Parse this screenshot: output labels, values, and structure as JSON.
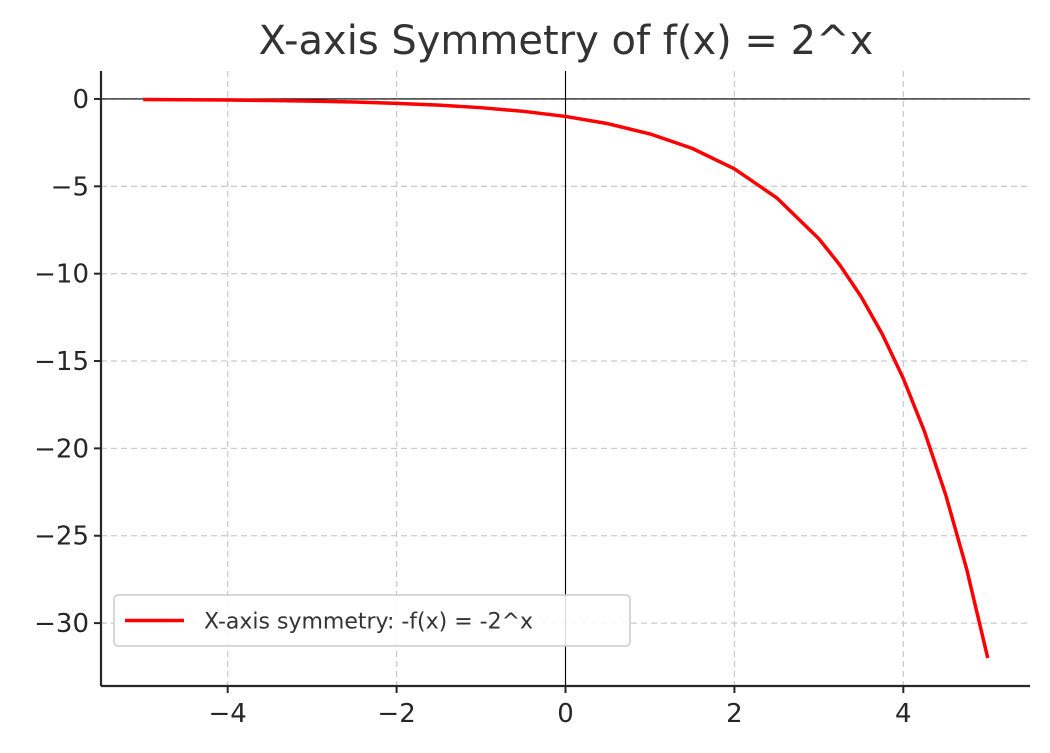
{
  "chart_data": {
    "type": "line",
    "title": "X-axis Symmetry of f(x) = 2^x",
    "xlabel": "",
    "ylabel": "",
    "xlim": [
      -5.5,
      5.5
    ],
    "ylim": [
      -33.6,
      1.6
    ],
    "x_ticks": [
      -4,
      -2,
      0,
      2,
      4
    ],
    "y_ticks": [
      0,
      -5,
      -10,
      -15,
      -20,
      -25,
      -30
    ],
    "x_tick_labels": [
      "−4",
      "−2",
      "0",
      "2",
      "4"
    ],
    "y_tick_labels": [
      "0",
      "−5",
      "−10",
      "−15",
      "−20",
      "−25",
      "−30"
    ],
    "grid": true,
    "reference_lines": {
      "x": 0,
      "y": 0
    },
    "legend_position": "lower-left",
    "series": [
      {
        "name": "X-axis symmetry: -f(x) = -2^x",
        "color": "#ff0000",
        "x": [
          -5,
          -4.5,
          -4,
          -3.5,
          -3,
          -2.5,
          -2,
          -1.5,
          -1,
          -0.5,
          0,
          0.5,
          1,
          1.5,
          2,
          2.5,
          3,
          3.25,
          3.5,
          3.75,
          4,
          4.25,
          4.5,
          4.75,
          5
        ],
        "y": [
          -0.03125,
          -0.0442,
          -0.0625,
          -0.0884,
          -0.125,
          -0.1768,
          -0.25,
          -0.3536,
          -0.5,
          -0.7071,
          -1,
          -1.4142,
          -2,
          -2.8284,
          -4,
          -5.6569,
          -8,
          -9.5137,
          -11.3137,
          -13.4543,
          -16,
          -19.0273,
          -22.6274,
          -26.9087,
          -32
        ]
      }
    ]
  }
}
